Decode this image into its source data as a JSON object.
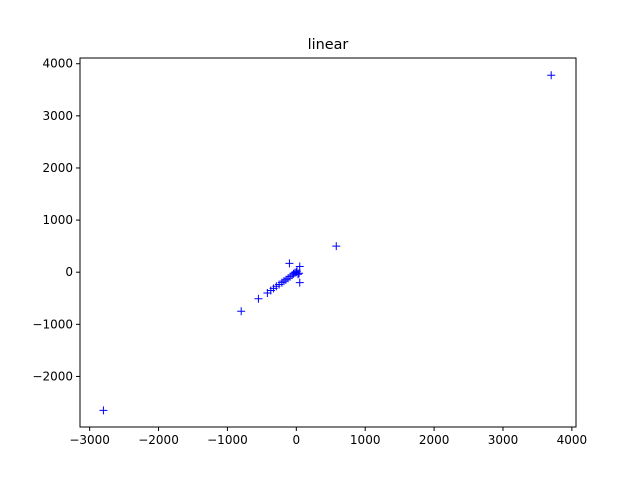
{
  "chart_data": {
    "type": "scatter",
    "title": "linear",
    "xlabel": "",
    "ylabel": "",
    "xlim": [
      -3140,
      4060
    ],
    "ylim": [
      -2970,
      4110
    ],
    "xticks": [
      -3000,
      -2000,
      -1000,
      0,
      1000,
      2000,
      3000,
      4000
    ],
    "yticks": [
      -2000,
      -1000,
      0,
      1000,
      2000,
      3000,
      4000
    ],
    "xtick_labels": [
      "−3000",
      "−2000",
      "−1000",
      "0",
      "1000",
      "2000",
      "3000",
      "4000"
    ],
    "ytick_labels": [
      "−2000",
      "−1000",
      "0",
      "1000",
      "2000",
      "3000",
      "4000"
    ],
    "grid": false,
    "marker": "+",
    "color": "#0000ff",
    "series": [
      {
        "name": "linear",
        "points": [
          {
            "x": -2800,
            "y": -2650
          },
          {
            "x": -800,
            "y": -750
          },
          {
            "x": -550,
            "y": -510
          },
          {
            "x": -420,
            "y": -400
          },
          {
            "x": -370,
            "y": -350
          },
          {
            "x": -330,
            "y": -310
          },
          {
            "x": -290,
            "y": -270
          },
          {
            "x": -250,
            "y": -235
          },
          {
            "x": -210,
            "y": -200
          },
          {
            "x": -180,
            "y": -170
          },
          {
            "x": -150,
            "y": -145
          },
          {
            "x": -120,
            "y": -115
          },
          {
            "x": -90,
            "y": -85
          },
          {
            "x": -60,
            "y": -55
          },
          {
            "x": -40,
            "y": -30
          },
          {
            "x": -20,
            "y": -10
          },
          {
            "x": 0,
            "y": 0
          },
          {
            "x": 10,
            "y": 20
          },
          {
            "x": 25,
            "y": -40
          },
          {
            "x": 40,
            "y": -20
          },
          {
            "x": 50,
            "y": 110
          },
          {
            "x": 50,
            "y": -200
          },
          {
            "x": -100,
            "y": 170
          },
          {
            "x": 580,
            "y": 500
          },
          {
            "x": 3700,
            "y": 3780
          }
        ]
      }
    ]
  }
}
